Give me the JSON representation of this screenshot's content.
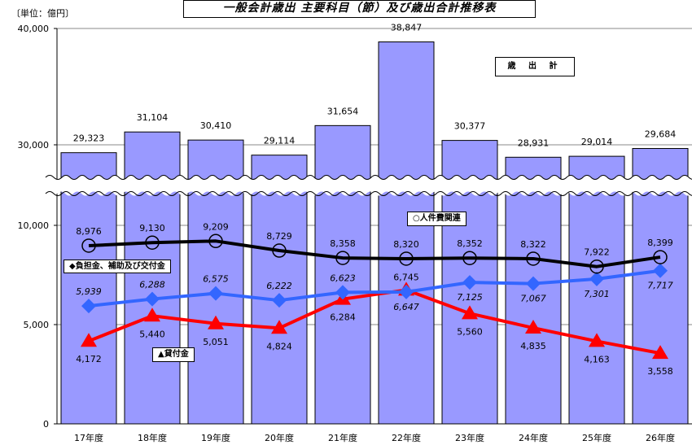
{
  "title": "一般会計歳出 主要科目（節）及び歳出合計推移表",
  "unit_label": "〔単位：億円〕",
  "colors": {
    "bar": "#9999ff",
    "personnel": "#000000",
    "burden": "#3366ff",
    "loan": "#ff0000"
  },
  "chart_data": {
    "type": "bar",
    "title": "一般会計歳出 主要科目（節）及び歳出合計推移表",
    "categories": [
      "17年度",
      "18年度",
      "19年度",
      "20年度",
      "21年度",
      "22年度",
      "23年度",
      "24年度",
      "25年度",
      "26年度"
    ],
    "y_ticks_upper": [
      "40,000",
      "30,000"
    ],
    "y_ticks_lower": [
      "10,000",
      "5,000",
      "0"
    ],
    "axis_break": true,
    "upper_ylim": [
      25000,
      40000
    ],
    "lower_ylim": [
      0,
      12000
    ],
    "series": [
      {
        "name": "歳 出 計",
        "type": "bar",
        "values": [
          29323,
          31104,
          30410,
          29114,
          31654,
          38847,
          30377,
          28931,
          29014,
          29684
        ],
        "labels": [
          "29,323",
          "31,104",
          "30,410",
          "29,114",
          "31,654",
          "38,847",
          "30,377",
          "28,931",
          "29,014",
          "29,684"
        ]
      },
      {
        "name": "○人件費関連",
        "type": "line",
        "marker": "circle",
        "values": [
          8976,
          9130,
          9209,
          8729,
          8358,
          8320,
          8352,
          8322,
          7922,
          8399
        ],
        "labels": [
          "8,976",
          "9,130",
          "9,209",
          "8,729",
          "8,358",
          "8,320",
          "8,352",
          "8,322",
          "7,922",
          "8,399"
        ]
      },
      {
        "name": "◆負担金、補助及び交付金",
        "type": "line",
        "marker": "diamond",
        "values": [
          5939,
          6288,
          6575,
          6222,
          6623,
          6647,
          7125,
          7067,
          7301,
          7717
        ],
        "labels": [
          "5,939",
          "6,288",
          "6,575",
          "6,222",
          "6,623",
          "6,647",
          "7,125",
          "7,067",
          "7,301",
          "7,717"
        ]
      },
      {
        "name": "▲貸付金",
        "type": "line",
        "marker": "triangle",
        "values": [
          4172,
          5440,
          5051,
          4824,
          6284,
          6745,
          5560,
          4835,
          4163,
          3558
        ],
        "labels": [
          "4,172",
          "5,440",
          "5,051",
          "4,824",
          "6,284",
          "6,745",
          "5,560",
          "4,835",
          "4,163",
          "3,558"
        ]
      }
    ]
  }
}
